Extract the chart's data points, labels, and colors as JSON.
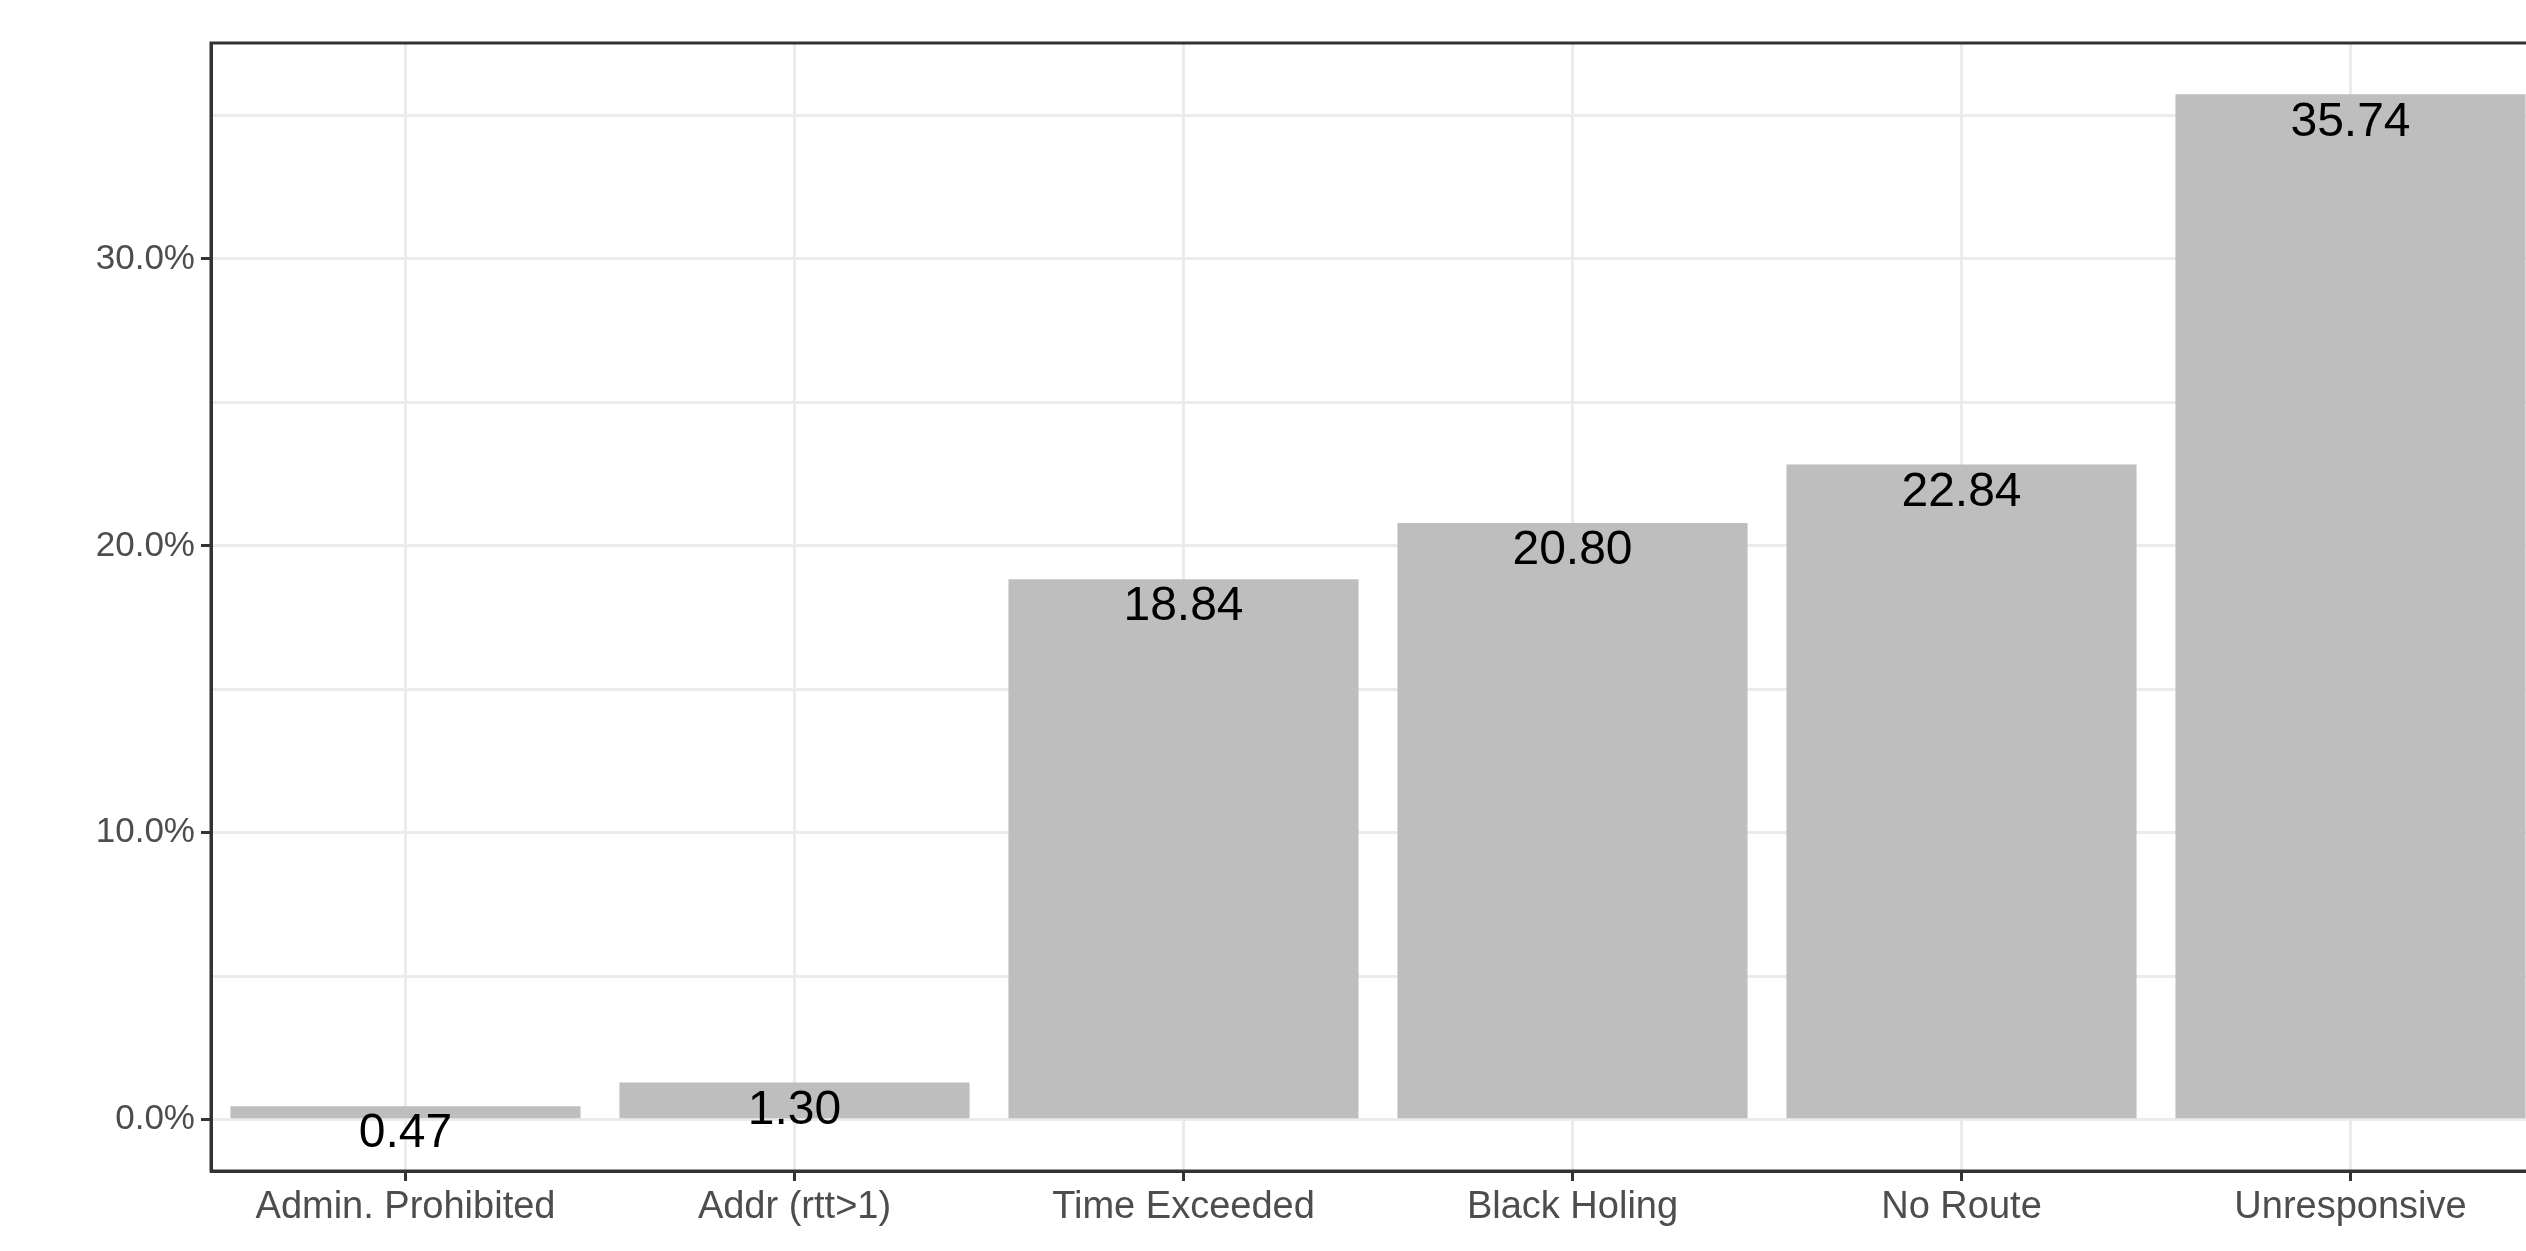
{
  "chart_data": {
    "type": "bar",
    "categories": [
      "Admin. Prohibited",
      "Addr (rtt>1)",
      "Time Exceeded",
      "Black Holing",
      "No Route",
      "Unresponsive"
    ],
    "values": [
      0.47,
      1.3,
      18.84,
      20.8,
      22.84,
      35.74
    ],
    "color": "#bebebe",
    "ylim": [
      -1.787,
      37.527
    ],
    "yticks": [
      {
        "value": 0,
        "label": "0.0%"
      },
      {
        "value": 5,
        "label": null
      },
      {
        "value": 10,
        "label": "10.0%"
      },
      {
        "value": 15,
        "label": null
      },
      {
        "value": 20,
        "label": "20.0%"
      },
      {
        "value": 25,
        "label": null
      },
      {
        "value": 30,
        "label": "30.0%"
      },
      {
        "value": 35,
        "label": null
      }
    ],
    "value_labels": [
      "0.47",
      "1.30",
      "18.84",
      "20.80",
      "22.84",
      "35.74"
    ],
    "grid": true,
    "legend": false
  }
}
